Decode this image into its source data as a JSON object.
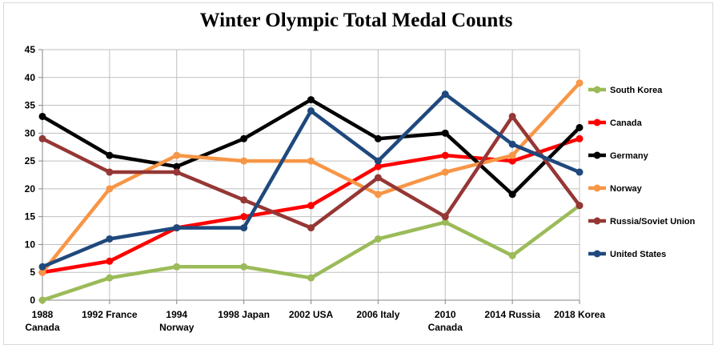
{
  "chart_data": {
    "type": "line",
    "title": "Winter Olympic Total Medal Counts",
    "xlabel": "",
    "ylabel": "",
    "ylim": [
      0,
      45
    ],
    "yticks": [
      0,
      5,
      10,
      15,
      20,
      25,
      30,
      35,
      40,
      45
    ],
    "grid": true,
    "legend_position": "right",
    "categories": [
      [
        "1988",
        "Canada"
      ],
      [
        "1992 France"
      ],
      [
        "1994",
        "Norway"
      ],
      [
        "1998 Japan"
      ],
      [
        "2002 USA"
      ],
      [
        "2006 Italy"
      ],
      [
        "2010",
        "Canada"
      ],
      [
        "2014 Russia"
      ],
      [
        "2018 Korea"
      ]
    ],
    "series": [
      {
        "name": "South Korea",
        "color": "#9bbb59",
        "values": [
          0,
          4,
          6,
          6,
          4,
          11,
          14,
          8,
          17
        ]
      },
      {
        "name": "Canada",
        "color": "#ff0000",
        "values": [
          5,
          7,
          13,
          15,
          17,
          24,
          26,
          25,
          29
        ]
      },
      {
        "name": "Germany",
        "color": "#000000",
        "values": [
          33,
          26,
          24,
          29,
          36,
          29,
          30,
          19,
          31
        ]
      },
      {
        "name": "Norway",
        "color": "#f79646",
        "values": [
          5,
          20,
          26,
          25,
          25,
          19,
          23,
          26,
          39
        ]
      },
      {
        "name": "Russia/Soviet Union",
        "color": "#953735",
        "values": [
          29,
          23,
          23,
          18,
          13,
          22,
          15,
          33,
          17
        ]
      },
      {
        "name": "United States",
        "color": "#1f497d",
        "values": [
          6,
          11,
          13,
          13,
          34,
          25,
          37,
          28,
          23
        ]
      }
    ]
  }
}
